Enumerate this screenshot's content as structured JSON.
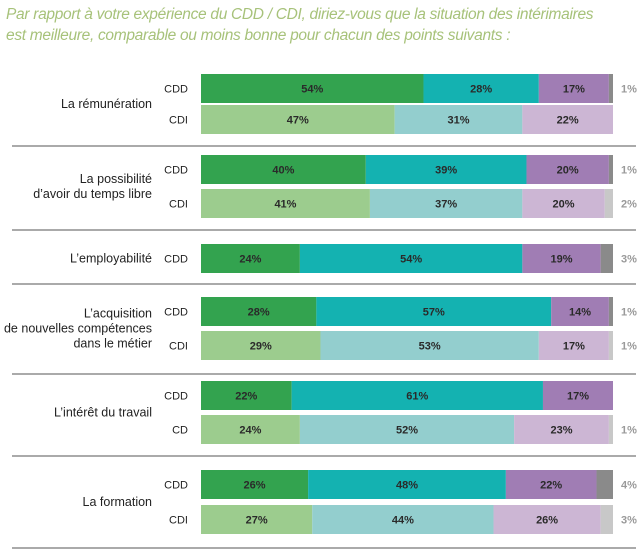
{
  "title_lines": [
    "Par rapport à votre expérience du CDD / CDI, diriez-vous que la situation des intérimaires",
    "est meilleure, comparable ou moins bonne pour chacun des points suivants :"
  ],
  "chart_data": {
    "type": "bar",
    "orientation": "horizontal",
    "stacked": true,
    "title": "Par rapport à votre expérience du CDD / CDI, diriez-vous que la situation des intérimaires est meilleure, comparable ou moins bonne pour chacun des points suivants :",
    "groups": [
      {
        "label": [
          "La rémunération"
        ],
        "rows": [
          {
            "label": "CDD",
            "values": [
              54,
              28,
              17,
              1
            ],
            "labels": [
              "54%",
              "28%",
              "17%",
              "1%"
            ]
          },
          {
            "label": "CDI",
            "values": [
              47,
              31,
              22,
              0
            ],
            "labels": [
              "47%",
              "31%",
              "22%",
              ""
            ]
          }
        ]
      },
      {
        "label": [
          "La possibilité",
          "d’avoir du temps libre"
        ],
        "rows": [
          {
            "label": "CDD",
            "values": [
              40,
              39,
              20,
              1
            ],
            "labels": [
              "40%",
              "39%",
              "20%",
              "1%"
            ]
          },
          {
            "label": "CDI",
            "values": [
              41,
              37,
              20,
              2
            ],
            "labels": [
              "41%",
              "37%",
              "20%",
              "2%"
            ]
          }
        ]
      },
      {
        "label": [
          "L’employabilité"
        ],
        "rows": [
          {
            "label": "CDD",
            "values": [
              24,
              54,
              19,
              3
            ],
            "labels": [
              "24%",
              "54%",
              "19%",
              "3%"
            ]
          }
        ]
      },
      {
        "label": [
          "L’acquisition",
          "de nouvelles compétences",
          "dans le métier"
        ],
        "rows": [
          {
            "label": "CDD",
            "values": [
              28,
              57,
              14,
              1
            ],
            "labels": [
              "28%",
              "57%",
              "14%",
              "1%"
            ]
          },
          {
            "label": "CDI",
            "values": [
              29,
              53,
              17,
              1
            ],
            "labels": [
              "29%",
              "53%",
              "17%",
              "1%"
            ]
          }
        ]
      },
      {
        "label": [
          "L’intérêt du travail"
        ],
        "rows": [
          {
            "label": "CDD",
            "values": [
              22,
              61,
              17,
              0
            ],
            "labels": [
              "22%",
              "61%",
              "17%",
              ""
            ]
          },
          {
            "label": "CD",
            "values": [
              24,
              52,
              23,
              1
            ],
            "labels": [
              "24%",
              "52%",
              "23%",
              "1%"
            ]
          }
        ]
      },
      {
        "label": [
          "La formation"
        ],
        "rows": [
          {
            "label": "CDD",
            "values": [
              26,
              48,
              22,
              4
            ],
            "labels": [
              "26%",
              "48%",
              "22%",
              "4%"
            ]
          },
          {
            "label": "CDI",
            "values": [
              27,
              44,
              26,
              3
            ],
            "labels": [
              "27%",
              "44%",
              "26%",
              "3%"
            ]
          }
        ]
      }
    ],
    "colors": {
      "CDD": [
        "#33a34f",
        "#14b2b1",
        "#a07db4",
        "#8a8a8a"
      ],
      "CDI": [
        "#9ccc8e",
        "#93cece",
        "#ccb6d4",
        "#c8c8c8"
      ],
      "separator": "#555555"
    }
  }
}
